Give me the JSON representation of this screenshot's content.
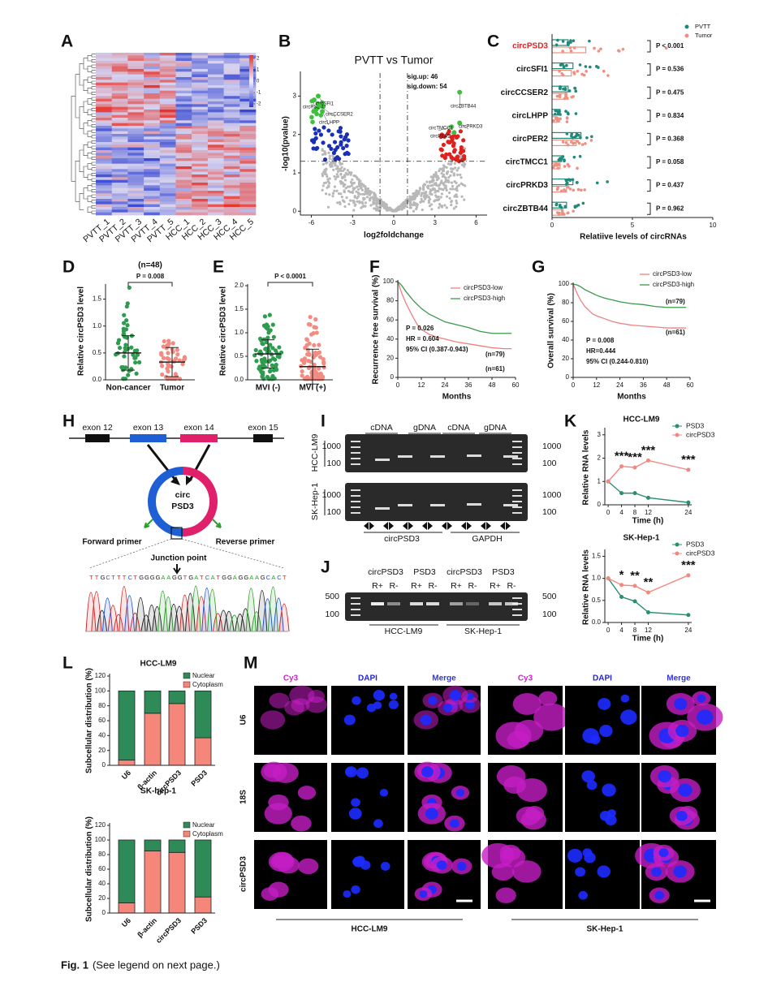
{
  "panel_a": {
    "letter": "A",
    "samples": [
      "PVTT_1",
      "PVTT_2",
      "PVTT_3",
      "PVTT_4",
      "PVTT_5",
      "HCC_1",
      "HCC_2",
      "HCC_3",
      "HCC_4",
      "HCC_5"
    ],
    "colorbar_ticks": [
      2,
      1,
      0,
      -1,
      -2
    ]
  },
  "panel_b": {
    "letter": "B",
    "type": "scatter",
    "title": "PVTT vs Tumor",
    "xlabel": "log2foldchange",
    "ylabel": "-log10(pvalue)",
    "xlim": [
      -6.8,
      6.8
    ],
    "ylim": [
      -0.1,
      3.6
    ],
    "xticks": [
      -6,
      -3,
      0,
      3,
      6
    ],
    "yticks": [
      0,
      1,
      2,
      3
    ],
    "annotations": [
      "sig.up: 46",
      "sig.down: 54"
    ],
    "thresholds": {
      "x": [
        -1,
        1
      ],
      "y": 1.3
    },
    "labeled_points": {
      "names": [
        "circPSD3",
        "circSFI1",
        "circCCSER2",
        "circLHPP",
        "circZBTB44",
        "circTMCC1",
        "circPER2",
        "circPRKD3"
      ],
      "x": [
        -5.8,
        -5.5,
        -5.4,
        -5.2,
        4.8,
        4.2,
        4.4,
        4.8
      ],
      "y": [
        2.9,
        3.0,
        2.75,
        2.6,
        3.1,
        2.2,
        2.05,
        2.3
      ],
      "color": "#3fbf3f"
    }
  },
  "panel_c": {
    "letter": "C",
    "type": "bar",
    "categories": [
      "circPSD3",
      "circSFI1",
      "circCCSER2",
      "circLHPP",
      "circPER2",
      "circTMCC1",
      "circPRKD3",
      "circZBTB44"
    ],
    "series": [
      {
        "name": "PVTT",
        "color": "#1f8a7a",
        "values": [
          1.0,
          1.3,
          1.0,
          0.5,
          1.8,
          0.6,
          1.3,
          0.9
        ]
      },
      {
        "name": "Tumor",
        "color": "#f08f80",
        "values": [
          2.1,
          1.2,
          0.8,
          0.3,
          1.5,
          0.5,
          0.9,
          0.6
        ]
      }
    ],
    "p_labels": [
      "P < 0.001",
      "P = 0.536",
      "P = 0.475",
      "P = 0.834",
      "P = 0.368",
      "P = 0.058",
      "P = 0.437",
      "P = 0.962"
    ],
    "xlabel": "Relatiive  levels of circRNAs",
    "xlim": [
      0,
      10
    ],
    "xticks": [
      0,
      5,
      10
    ],
    "legend": "top right"
  },
  "panel_d": {
    "letter": "D",
    "type": "dot",
    "categories": [
      "Non-cancer",
      "Tumor"
    ],
    "colors": [
      "#2e9b4f",
      "#f28b82"
    ],
    "ylabel": "Relative circPSD3 level",
    "ylim": [
      0,
      1.75
    ],
    "yticks": [
      {
        "value": 0,
        "label": "0.0"
      },
      0.5,
      {
        "value": 1,
        "label": "1.0"
      },
      1.5
    ],
    "means": [
      0.5,
      0.33
    ],
    "sd": [
      0.32,
      0.27
    ],
    "annotations": [
      "(n=48)",
      "P = 0.008"
    ]
  },
  "panel_e": {
    "letter": "E",
    "type": "dot",
    "categories": [
      "MVI (-)",
      "MVI (+)"
    ],
    "colors": [
      "#2e9b4f",
      "#f28b82"
    ],
    "ylabel": "Relative circPSD3 level",
    "ylim": [
      0,
      2.0
    ],
    "yticks": [
      {
        "value": 0,
        "label": "0.0"
      },
      0.5,
      {
        "value": 1,
        "label": "1.0"
      },
      1.5,
      {
        "value": 2,
        "label": "2.0"
      }
    ],
    "means": [
      0.55,
      0.28
    ],
    "sd": [
      0.3,
      0.37
    ],
    "annotations": [
      "P < 0.0001"
    ]
  },
  "panel_f": {
    "letter": "F",
    "type": "line",
    "xlabel": "Months",
    "ylabel": "Recurrence free survival (%)",
    "xlim": [
      0,
      60
    ],
    "ylim": [
      0,
      100
    ],
    "xticks": [
      0,
      12,
      24,
      36,
      48,
      60
    ],
    "yticks": [
      0,
      20,
      40,
      60,
      80,
      100
    ],
    "series": [
      {
        "name": "circPSD3-low",
        "color": "#f08080",
        "x": [
          0,
          2,
          4,
          6,
          8,
          10,
          12,
          16,
          20,
          24,
          30,
          36,
          42,
          48,
          54,
          58
        ],
        "y": [
          100,
          88,
          78,
          70,
          62,
          55,
          50,
          45,
          42,
          40,
          37,
          35,
          33,
          31,
          30,
          30
        ]
      },
      {
        "name": "circPSD3-high",
        "color": "#3a9a4a",
        "x": [
          0,
          2,
          4,
          6,
          8,
          10,
          12,
          16,
          20,
          24,
          30,
          36,
          42,
          48,
          54,
          58
        ],
        "y": [
          100,
          96,
          90,
          85,
          80,
          76,
          72,
          66,
          62,
          58,
          55,
          52,
          48,
          46,
          46,
          46
        ]
      }
    ],
    "n_labels": [
      "(n=79)",
      "(n=61)"
    ],
    "stats": [
      "P = 0.026",
      "HR = 0.604",
      "95% CI (0.387-0.943)"
    ]
  },
  "panel_g": {
    "letter": "G",
    "type": "line",
    "xlabel": "Months",
    "ylabel": "Overall survival (%)",
    "xlim": [
      0,
      60
    ],
    "ylim": [
      0,
      100
    ],
    "xticks": [
      0,
      12,
      24,
      36,
      48,
      60
    ],
    "yticks": [
      0,
      20,
      40,
      60,
      80,
      100
    ],
    "series": [
      {
        "name": "circPSD3-low",
        "color": "#f08080",
        "x": [
          0,
          2,
          4,
          6,
          8,
          10,
          12,
          16,
          20,
          24,
          30,
          36,
          42,
          48,
          54,
          58
        ],
        "y": [
          100,
          90,
          82,
          76,
          72,
          68,
          66,
          63,
          60,
          58,
          56,
          55,
          54,
          53,
          53,
          53
        ]
      },
      {
        "name": "circPSD3-high",
        "color": "#3a9a4a",
        "x": [
          0,
          2,
          4,
          6,
          8,
          10,
          12,
          16,
          20,
          24,
          30,
          36,
          42,
          48,
          54,
          58
        ],
        "y": [
          100,
          99,
          97,
          94,
          92,
          90,
          88,
          85,
          83,
          81,
          79,
          78,
          76,
          75,
          75,
          75
        ]
      }
    ],
    "n_labels": [
      "(n=79)",
      "(n=61)"
    ],
    "stats": [
      "P = 0.008",
      "HR=0.444",
      "95% CI (0.244-0.810)"
    ]
  },
  "panel_h": {
    "letter": "H",
    "exons": [
      "exon 12",
      "exon 13",
      "exon 14",
      "exon 15"
    ],
    "circle": [
      "circ",
      "PSD3"
    ],
    "primers": [
      "Forward primer",
      "Reverse primer"
    ],
    "junction": "Junction point",
    "sequence": [
      "T",
      "T",
      "G",
      "C",
      "T",
      "T",
      "T",
      "C",
      "T",
      "G",
      "G",
      "G",
      "G",
      "A",
      "A",
      "G",
      "G",
      "T",
      "G",
      "A",
      "T",
      "C",
      "A",
      "T",
      "G",
      "G",
      "A",
      "G",
      "G",
      "A",
      "A",
      "G",
      "C",
      "A",
      "C",
      "T"
    ]
  },
  "panel_i": {
    "letter": "I",
    "columns": [
      "cDNA",
      "gDNA",
      "cDNA",
      "gDNA"
    ],
    "cell_lines": [
      "HCC-LM9",
      "SK-Hep-1"
    ],
    "markers": [
      1000,
      100
    ],
    "genes": [
      "circPSD3",
      "GAPDH"
    ]
  },
  "panel_j": {
    "letter": "J",
    "genes": [
      "circPSD3",
      "PSD3",
      "circPSD3",
      "PSD3"
    ],
    "treatments": [
      "R+",
      "R-"
    ],
    "markers": [
      500,
      100
    ],
    "cell_lines": [
      "HCC-LM9",
      "SK-Hep-1"
    ]
  },
  "panel_k": {
    "letter": "K",
    "charts": [
      {
        "type": "line",
        "title": "HCC-LM9",
        "xlabel": "Time (h)",
        "ylabel": "Relative RNA levels",
        "x": [
          0,
          4,
          8,
          12,
          24
        ],
        "xlim": [
          -1,
          25
        ],
        "xticks": [
          0,
          4,
          8,
          12,
          24
        ],
        "ylim": [
          0,
          3.2
        ],
        "yticks": [
          0,
          1,
          2,
          3
        ],
        "series": [
          {
            "name": "PSD3",
            "color": "#2a8f6a",
            "values": [
              1.0,
              0.5,
              0.5,
              0.3,
              0.1
            ]
          },
          {
            "name": "circPSD3",
            "color": "#f08a80",
            "values": [
              1.0,
              1.65,
              1.6,
              1.9,
              1.5
            ]
          }
        ],
        "star_x": [
          4,
          8,
          12,
          24
        ],
        "stars": [
          "***",
          "***",
          "***",
          "***"
        ]
      },
      {
        "type": "line",
        "title": "SK-Hep-1",
        "xlabel": "Time (h)",
        "ylabel": "Relative RNA levels",
        "x": [
          0,
          4,
          8,
          12,
          24
        ],
        "xlim": [
          -1,
          25
        ],
        "xticks": [
          0,
          4,
          8,
          12,
          24
        ],
        "ylim": [
          0,
          1.6
        ],
        "yticks": [
          {
            "value": 0,
            "label": "0.0"
          },
          0.5,
          {
            "value": 1,
            "label": "1.0"
          },
          1.5
        ],
        "series": [
          {
            "name": "PSD3",
            "color": "#2a8f6a",
            "values": [
              1.0,
              0.58,
              0.48,
              0.23,
              0.17
            ]
          },
          {
            "name": "circPSD3",
            "color": "#f08a80",
            "values": [
              1.0,
              0.85,
              0.83,
              0.68,
              1.07
            ]
          }
        ],
        "star_x": [
          4,
          8,
          12,
          24
        ],
        "stars": [
          "*",
          "**",
          "**",
          "***"
        ]
      }
    ]
  },
  "panel_l": {
    "letter": "L",
    "charts": [
      {
        "type": "stacked_bar",
        "title": "HCC-LM9",
        "ylabel": "Subcellular distribution (%)",
        "categories": [
          "U6",
          "β-actin",
          "circPSD3",
          "PSD3"
        ],
        "ylim": [
          0,
          120
        ],
        "yticks": [
          0,
          20,
          40,
          60,
          80,
          100,
          120
        ],
        "series": [
          {
            "name": "Cytoplasm",
            "color": "#f4877a",
            "values": [
              7,
              70,
              83,
              37
            ]
          },
          {
            "name": "Nuclear",
            "color": "#2e8b57",
            "values": [
              93,
              30,
              17,
              63
            ]
          }
        ]
      },
      {
        "type": "stacked_bar",
        "title": "SK-hep-1",
        "ylabel": "Subcellular distribution (%)",
        "categories": [
          "U6",
          "β-actin",
          "circPSD3",
          "PSD3"
        ],
        "ylim": [
          0,
          120
        ],
        "yticks": [
          0,
          20,
          40,
          60,
          80,
          100,
          120
        ],
        "series": [
          {
            "name": "Cytoplasm",
            "color": "#f4877a",
            "values": [
              14,
              85,
              83,
              22
            ]
          },
          {
            "name": "Nuclear",
            "color": "#2e8b57",
            "values": [
              86,
              15,
              17,
              78
            ]
          }
        ]
      }
    ]
  },
  "panel_m": {
    "letter": "M",
    "channels": [
      "Cy3",
      "DAPI",
      "Merge"
    ],
    "rows": [
      "U6",
      "18S",
      "circPSD3"
    ],
    "cell_lines": [
      "HCC-LM9",
      "SK-Hep-1"
    ]
  },
  "caption": {
    "label": "Fig. 1",
    "text": "(See legend on next page.)"
  }
}
